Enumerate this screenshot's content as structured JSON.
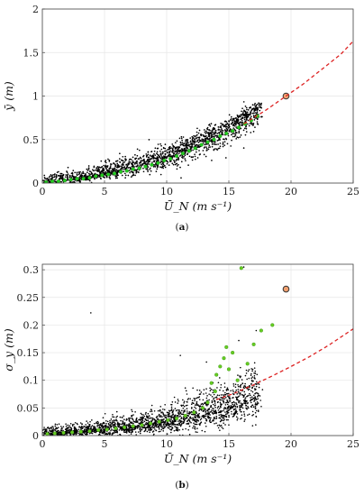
{
  "chart_data": [
    {
      "type": "scatter",
      "panel": "(a)",
      "caption_letter": "a",
      "xlabel": "Ū_N (m s⁻¹)",
      "ylabel": "ȳ (m)",
      "xlim": [
        0,
        25
      ],
      "ylim": [
        0,
        2
      ],
      "xticks": [
        "0",
        "5",
        "10",
        "15",
        "20",
        "25"
      ],
      "yticks": [
        "0",
        "0.5",
        "1",
        "1.5",
        "2"
      ],
      "grid": true,
      "series": [
        {
          "role": "all_data_cloud",
          "color": "#000000",
          "marker": "dot",
          "trend": [
            [
              0,
              0.02
            ],
            [
              2,
              0.05
            ],
            [
              4,
              0.09
            ],
            [
              6,
              0.15
            ],
            [
              8,
              0.22
            ],
            [
              10,
              0.31
            ],
            [
              12,
              0.43
            ],
            [
              14,
              0.57
            ],
            [
              16,
              0.72
            ],
            [
              17.5,
              0.86
            ]
          ],
          "spread_upper": [
            [
              0,
              0.08
            ],
            [
              3,
              0.15
            ],
            [
              6,
              0.26
            ],
            [
              9,
              0.38
            ],
            [
              12,
              0.54
            ],
            [
              15,
              0.74
            ],
            [
              17.5,
              0.93
            ]
          ],
          "spread_lower": [
            [
              0,
              -0.03
            ],
            [
              3,
              0.02
            ],
            [
              6,
              0.07
            ],
            [
              9,
              0.14
            ],
            [
              12,
              0.28
            ],
            [
              15,
              0.45
            ],
            [
              17.5,
              0.7
            ]
          ]
        },
        {
          "role": "binned",
          "color": "#22cc22",
          "marker": "circle",
          "points": [
            [
              0.3,
              0.01
            ],
            [
              0.8,
              0.02
            ],
            [
              1.3,
              0.02
            ],
            [
              1.8,
              0.03
            ],
            [
              2.3,
              0.04
            ],
            [
              2.8,
              0.05
            ],
            [
              3.3,
              0.05
            ],
            [
              3.8,
              0.06
            ],
            [
              4.3,
              0.08
            ],
            [
              4.8,
              0.09
            ],
            [
              5.3,
              0.1
            ],
            [
              5.8,
              0.11
            ],
            [
              6.3,
              0.13
            ],
            [
              6.8,
              0.14
            ],
            [
              7.3,
              0.16
            ],
            [
              7.8,
              0.17
            ],
            [
              8.3,
              0.19
            ],
            [
              8.8,
              0.21
            ],
            [
              9.3,
              0.23
            ],
            [
              9.8,
              0.26
            ],
            [
              10.3,
              0.28
            ],
            [
              10.8,
              0.31
            ],
            [
              11.3,
              0.34
            ],
            [
              11.8,
              0.37
            ],
            [
              12.3,
              0.4
            ],
            [
              12.8,
              0.44
            ],
            [
              13.3,
              0.47
            ],
            [
              13.8,
              0.5
            ],
            [
              14.3,
              0.54
            ],
            [
              14.8,
              0.57
            ],
            [
              15.3,
              0.6
            ],
            [
              15.8,
              0.64
            ],
            [
              16.3,
              0.68
            ],
            [
              16.8,
              0.72
            ],
            [
              17.3,
              0.77
            ]
          ]
        },
        {
          "role": "highlight",
          "color": "#f0a070",
          "edge": "#333333",
          "points": [
            [
              19.6,
              1.0
            ]
          ]
        },
        {
          "role": "fit_curve",
          "color": "#dd2222",
          "style": "dashed",
          "points": [
            [
              16.2,
              0.68
            ],
            [
              18,
              0.84
            ],
            [
              19.6,
              1.0
            ],
            [
              21,
              1.14
            ],
            [
              22.5,
              1.31
            ],
            [
              24,
              1.48
            ],
            [
              25,
              1.63
            ]
          ]
        }
      ]
    },
    {
      "type": "scatter",
      "panel": "(b)",
      "caption_letter": "b",
      "xlabel": "Ū_N (m s⁻¹)",
      "ylabel": "σ_y (m)",
      "xlim": [
        0,
        25
      ],
      "ylim": [
        0,
        0.31
      ],
      "xticks": [
        "0",
        "5",
        "10",
        "15",
        "20",
        "25"
      ],
      "yticks": [
        "0",
        "0.05",
        "0.1",
        "0.15",
        "0.2",
        "0.25",
        "0.3"
      ],
      "grid": true,
      "series": [
        {
          "role": "all_data_cloud",
          "color": "#000000",
          "marker": "dot",
          "trend": [
            [
              0,
              0.004
            ],
            [
              3,
              0.008
            ],
            [
              6,
              0.014
            ],
            [
              9,
              0.022
            ],
            [
              12,
              0.034
            ],
            [
              14,
              0.045
            ],
            [
              16,
              0.06
            ],
            [
              17.5,
              0.075
            ]
          ],
          "spread_upper": [
            [
              0,
              0.015
            ],
            [
              3,
              0.022
            ],
            [
              6,
              0.03
            ],
            [
              9,
              0.045
            ],
            [
              12,
              0.07
            ],
            [
              14,
              0.09
            ],
            [
              16,
              0.11
            ],
            [
              17.5,
              0.13
            ]
          ],
          "spread_lower": [
            [
              0,
              0.0
            ],
            [
              3,
              0.0
            ],
            [
              6,
              0.003
            ],
            [
              9,
              0.008
            ],
            [
              12,
              0.015
            ],
            [
              14,
              0.02
            ],
            [
              16,
              0.03
            ],
            [
              17.5,
              0.04
            ]
          ],
          "outliers": [
            [
              3.9,
              0.222
            ],
            [
              16.2,
              0.305
            ],
            [
              13.2,
              0.133
            ],
            [
              15.8,
              0.172
            ],
            [
              11.1,
              0.145
            ],
            [
              17.2,
              0.19
            ]
          ]
        },
        {
          "role": "binned",
          "color": "#66cc22",
          "marker": "circle",
          "points": [
            [
              0.4,
              0.003
            ],
            [
              1,
              0.004
            ],
            [
              1.7,
              0.005
            ],
            [
              2.4,
              0.006
            ],
            [
              3.1,
              0.007
            ],
            [
              3.8,
              0.008
            ],
            [
              4.5,
              0.01
            ],
            [
              5.2,
              0.011
            ],
            [
              5.9,
              0.013
            ],
            [
              6.6,
              0.015
            ],
            [
              7.3,
              0.017
            ],
            [
              8,
              0.019
            ],
            [
              8.7,
              0.022
            ],
            [
              9.4,
              0.025
            ],
            [
              10.1,
              0.028
            ],
            [
              10.8,
              0.031
            ],
            [
              11.5,
              0.036
            ],
            [
              12.2,
              0.042
            ],
            [
              12.9,
              0.05
            ],
            [
              13.3,
              0.06
            ],
            [
              13.6,
              0.095
            ],
            [
              14,
              0.11
            ],
            [
              14.3,
              0.125
            ],
            [
              14.6,
              0.14
            ],
            [
              15,
              0.12
            ],
            [
              15.3,
              0.15
            ],
            [
              15.7,
              0.1
            ],
            [
              16,
              0.303
            ],
            [
              16.5,
              0.13
            ],
            [
              17,
              0.165
            ],
            [
              17.6,
              0.19
            ],
            [
              18.5,
              0.2
            ],
            [
              14.8,
              0.16
            ],
            [
              13.9,
              0.08
            ]
          ]
        },
        {
          "role": "highlight",
          "color": "#f0a070",
          "edge": "#333333",
          "points": [
            [
              19.6,
              0.265
            ]
          ]
        },
        {
          "role": "fit_curve",
          "color": "#dd2222",
          "style": "dashed",
          "points": [
            [
              14,
              0.065
            ],
            [
              15.5,
              0.077
            ],
            [
              17,
              0.092
            ],
            [
              18.5,
              0.108
            ],
            [
              20,
              0.125
            ],
            [
              21.5,
              0.143
            ],
            [
              23,
              0.163
            ],
            [
              25,
              0.193
            ]
          ]
        }
      ]
    }
  ]
}
